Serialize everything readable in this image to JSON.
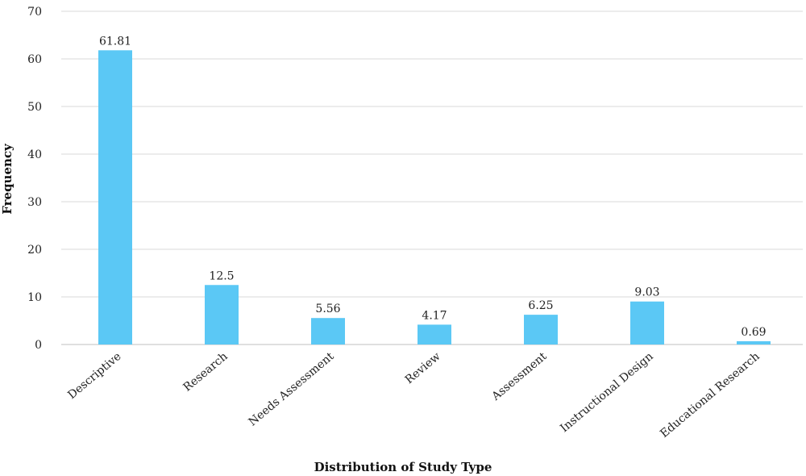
{
  "chart_data": {
    "type": "bar",
    "title": "",
    "xlabel": "Distribution of Study Type",
    "ylabel": "Frequency",
    "categories": [
      "Descriptive",
      "Research",
      "Needs Assessment",
      "Review",
      "Assessment",
      "Instructional Design",
      "Educational Research"
    ],
    "values": [
      61.81,
      12.5,
      5.56,
      4.17,
      6.25,
      9.03,
      0.69
    ],
    "value_labels": [
      "61.81",
      "12.5",
      "5.56",
      "4.17",
      "6.25",
      "9.03",
      "0.69"
    ],
    "ylim": [
      0,
      70
    ],
    "yticks": [
      0,
      10,
      20,
      30,
      40,
      50,
      60,
      70
    ],
    "grid": true,
    "legend": "none",
    "bar_color": "#5bc8f5"
  }
}
